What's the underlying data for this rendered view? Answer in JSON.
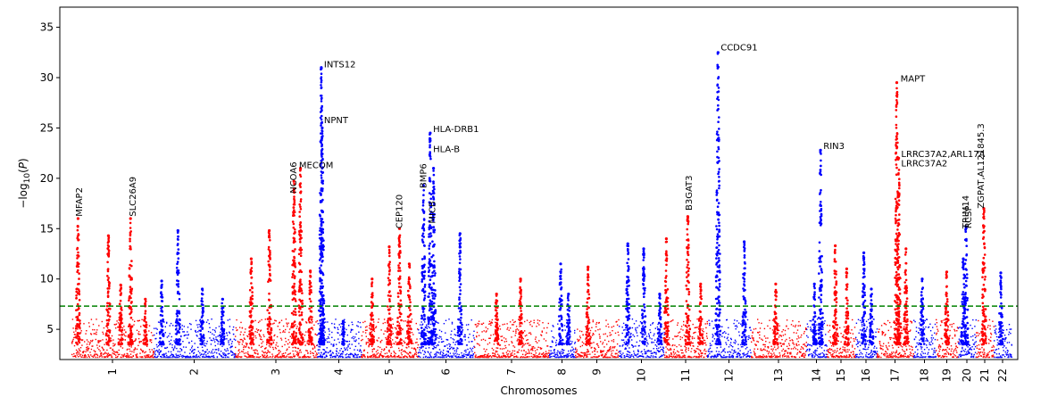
{
  "chart_data": {
    "type": "scatter",
    "title": "",
    "xlabel": "Chromosomes",
    "ylabel": "-log10(P)",
    "ylim": [
      2,
      37
    ],
    "yticks": [
      5,
      10,
      15,
      20,
      25,
      30,
      35
    ],
    "grid": false,
    "legend": "none",
    "threshold": {
      "value": 7.3,
      "color": "#008000",
      "style": "dashed"
    },
    "colors": {
      "odd": "#ff0000",
      "even": "#0000ff"
    },
    "chromosomes": [
      {
        "label": "1",
        "peaks": [
          [
            0.08,
            16.0
          ],
          [
            0.45,
            14.3
          ],
          [
            0.72,
            16.0
          ],
          [
            0.6,
            9.4
          ],
          [
            0.9,
            8.0
          ]
        ]
      },
      {
        "label": "2",
        "peaks": [
          [
            0.3,
            14.8
          ],
          [
            0.1,
            9.8
          ],
          [
            0.6,
            9.0
          ],
          [
            0.85,
            8.0
          ]
        ]
      },
      {
        "label": "3",
        "peaks": [
          [
            0.42,
            14.8
          ],
          [
            0.2,
            12.0
          ],
          [
            0.72,
            19.7
          ],
          [
            0.8,
            21.0
          ],
          [
            0.92,
            10.8
          ]
        ]
      },
      {
        "label": "4",
        "peaks": [
          [
            0.1,
            31.0
          ],
          [
            0.12,
            25.0
          ],
          [
            0.6,
            5.8
          ]
        ]
      },
      {
        "label": "5",
        "peaks": [
          [
            0.2,
            10.0
          ],
          [
            0.5,
            13.2
          ],
          [
            0.68,
            15.0
          ],
          [
            0.85,
            11.5
          ]
        ]
      },
      {
        "label": "6",
        "peaks": [
          [
            0.1,
            19.3
          ],
          [
            0.22,
            24.5
          ],
          [
            0.28,
            21.0
          ],
          [
            0.75,
            14.5
          ]
        ]
      },
      {
        "label": "7",
        "peaks": [
          [
            0.3,
            8.5
          ],
          [
            0.62,
            10.0
          ]
        ]
      },
      {
        "label": "8",
        "peaks": [
          [
            0.45,
            11.5
          ],
          [
            0.75,
            8.5
          ]
        ]
      },
      {
        "label": "9",
        "peaks": [
          [
            0.3,
            11.2
          ]
        ]
      },
      {
        "label": "10",
        "peaks": [
          [
            0.2,
            13.5
          ],
          [
            0.55,
            13.0
          ],
          [
            0.9,
            8.5
          ]
        ]
      },
      {
        "label": "11",
        "peaks": [
          [
            0.05,
            14.0
          ],
          [
            0.55,
            16.2
          ],
          [
            0.85,
            9.5
          ]
        ]
      },
      {
        "label": "12",
        "peaks": [
          [
            0.25,
            32.5
          ],
          [
            0.85,
            13.7
          ]
        ]
      },
      {
        "label": "13",
        "peaks": [
          [
            0.45,
            9.5
          ]
        ]
      },
      {
        "label": "14",
        "peaks": [
          [
            0.7,
            22.8
          ],
          [
            0.4,
            9.5
          ]
        ]
      },
      {
        "label": "15",
        "peaks": [
          [
            0.3,
            13.3
          ],
          [
            0.7,
            11.0
          ]
        ]
      },
      {
        "label": "16",
        "peaks": [
          [
            0.4,
            12.6
          ],
          [
            0.75,
            9.0
          ]
        ]
      },
      {
        "label": "17",
        "peaks": [
          [
            0.55,
            29.5
          ],
          [
            0.6,
            22.0
          ],
          [
            0.8,
            13.0
          ]
        ]
      },
      {
        "label": "18",
        "peaks": [
          [
            0.4,
            10.0
          ]
        ]
      },
      {
        "label": "19",
        "peaks": [
          [
            0.5,
            10.7
          ]
        ]
      },
      {
        "label": "20",
        "peaks": [
          [
            0.45,
            15.2
          ],
          [
            0.3,
            12.0
          ]
        ]
      },
      {
        "label": "21",
        "peaks": [
          [
            0.45,
            17.0
          ]
        ]
      },
      {
        "label": "22",
        "peaks": [
          [
            0.4,
            10.6
          ]
        ]
      }
    ],
    "annotations": [
      {
        "text": "MFAP2",
        "x_chr": 1,
        "x_frac": 0.1,
        "y": 16.2,
        "rotation": 90
      },
      {
        "text": "SLC26A9",
        "x_chr": 1,
        "x_frac": 0.75,
        "y": 16.2,
        "rotation": 90
      },
      {
        "text": "NCOA6",
        "x_chr": 3,
        "x_frac": 0.72,
        "y": 18.5,
        "rotation": 90
      },
      {
        "text": "MECOM",
        "x_chr": 3,
        "x_frac": 0.76,
        "y": 21.0,
        "rotation": 0
      },
      {
        "text": "INTS12",
        "x_chr": 4,
        "x_frac": 0.12,
        "y": 31.0,
        "rotation": 0
      },
      {
        "text": "NPNT",
        "x_chr": 4,
        "x_frac": 0.12,
        "y": 25.5,
        "rotation": 0
      },
      {
        "text": "CEP120",
        "x_chr": 5,
        "x_frac": 0.68,
        "y": 15.0,
        "rotation": 90
      },
      {
        "text": "BMP6",
        "x_chr": 6,
        "x_frac": 0.1,
        "y": 19.0,
        "rotation": 90
      },
      {
        "text": "MICB",
        "x_chr": 6,
        "x_frac": 0.26,
        "y": 15.5,
        "rotation": 90
      },
      {
        "text": "HLA-DRB1",
        "x_chr": 6,
        "x_frac": 0.24,
        "y": 24.6,
        "rotation": 0
      },
      {
        "text": "HLA-B",
        "x_chr": 6,
        "x_frac": 0.24,
        "y": 22.6,
        "rotation": 0
      },
      {
        "text": "B3GAT3",
        "x_chr": 11,
        "x_frac": 0.58,
        "y": 16.8,
        "rotation": 90
      },
      {
        "text": "CCDC91",
        "x_chr": 12,
        "x_frac": 0.27,
        "y": 32.7,
        "rotation": 0
      },
      {
        "text": "RIN3",
        "x_chr": 14,
        "x_frac": 0.75,
        "y": 22.9,
        "rotation": 0
      },
      {
        "text": "MAPT",
        "x_chr": 17,
        "x_frac": 0.6,
        "y": 29.6,
        "rotation": 0
      },
      {
        "text": "LRRC37A2,ARL17A",
        "x_chr": 17,
        "x_frac": 0.62,
        "y": 22.1,
        "rotation": 0
      },
      {
        "text": "LRRC37A2",
        "x_chr": 17,
        "x_frac": 0.62,
        "y": 21.2,
        "rotation": 0
      },
      {
        "text": "TRIM14",
        "x_chr": 20,
        "x_frac": 0.45,
        "y": 15.0,
        "rotation": 90
      },
      {
        "text": "RCSP",
        "x_chr": 20,
        "x_frac": 0.6,
        "y": 15.0,
        "rotation": 90
      },
      {
        "text": "ZGPAT,AL121845.3",
        "x_chr": 21,
        "x_frac": 0.3,
        "y": 17.0,
        "rotation": 90
      }
    ]
  }
}
